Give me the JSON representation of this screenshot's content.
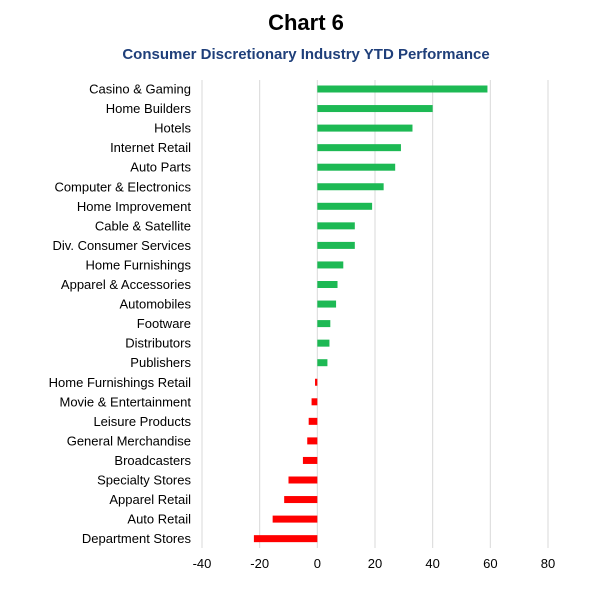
{
  "chart_data": {
    "type": "bar",
    "orientation": "horizontal",
    "title": "Chart 6",
    "subtitle": "Consumer Discretionary Industry YTD Performance",
    "xlabel": "",
    "ylabel": "",
    "xlim": [
      -40,
      80
    ],
    "xticks": [
      -40,
      -20,
      0,
      20,
      40,
      60,
      80
    ],
    "grid": "vertical",
    "colors": {
      "positive": "#1db954",
      "negative": "#ff0000",
      "grid": "#d9d9d9"
    },
    "categories": [
      "Casino & Gaming",
      "Home Builders",
      "Hotels",
      "Internet Retail",
      "Auto Parts",
      "Computer & Electronics",
      "Home Improvement",
      "Cable & Satellite",
      "Div. Consumer Services",
      "Home Furnishings",
      "Apparel & Accessories",
      "Automobiles",
      "Footware",
      "Distributors",
      "Publishers",
      "Home Furnishings Retail",
      "Movie & Entertainment",
      "Leisure Products",
      "General Merchandise",
      "Broadcasters",
      "Specialty Stores",
      "Apparel Retail",
      "Auto Retail",
      "Department Stores"
    ],
    "values": [
      59,
      40,
      33,
      29,
      27,
      23,
      19,
      13,
      13,
      9,
      7,
      6.5,
      4.5,
      4.2,
      3.5,
      -0.8,
      -2,
      -3,
      -3.5,
      -5,
      -10,
      -11.5,
      -15.5,
      -22
    ]
  }
}
